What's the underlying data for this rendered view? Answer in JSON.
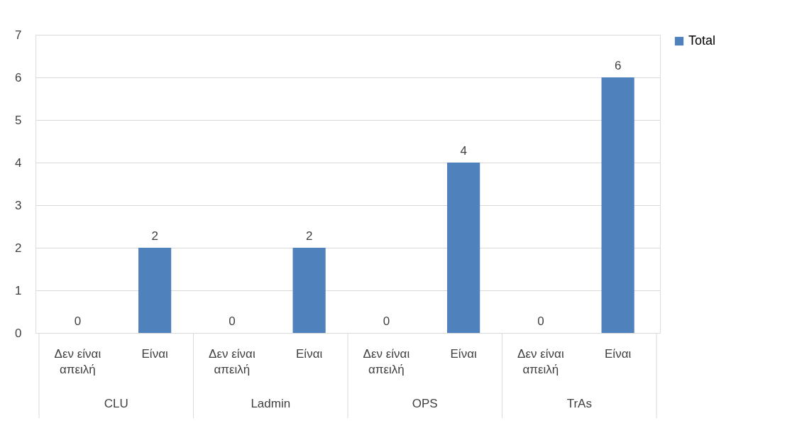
{
  "chart_data": {
    "type": "bar",
    "categories": [
      "Δεν είναι απειλή",
      "Είναι",
      "Δεν είναι απειλή",
      "Είναι",
      "Δεν είναι απειλή",
      "Είναι",
      "Δεν είναι απειλή",
      "Είναι"
    ],
    "series": [
      {
        "name": "Total",
        "color": "#4f81bd",
        "values": [
          0,
          2,
          0,
          2,
          0,
          4,
          0,
          6
        ]
      }
    ],
    "annotations": [
      "CLU",
      "Ladmin",
      "OPS",
      "TrAs"
    ],
    "ylim": [
      0,
      7
    ],
    "yticks": [
      0,
      1,
      2,
      3,
      4,
      5,
      6,
      7
    ],
    "grid": "y",
    "legend": "right",
    "data_labels": true
  }
}
